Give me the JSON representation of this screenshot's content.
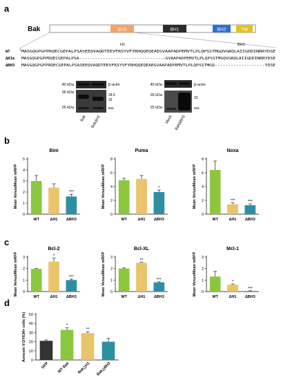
{
  "panel_labels": {
    "a": "a",
    "b": "b",
    "c": "c",
    "d": "d"
  },
  "colors": {
    "wt": "#8cc63f",
    "dh1": "#e8c46a",
    "dbh3": "#2e8fa3",
    "gfp": "#333333",
    "bh3_domain": "#f4a366",
    "bh1_domain": "#2b2b2b",
    "bh2_domain": "#2f6fce",
    "tm_domain": "#e3c21a",
    "gel_bg": "#2a2a2a"
  },
  "domain_map": {
    "protein": "Bak",
    "domains": [
      {
        "name": "BH3",
        "color_key": "bh3_domain"
      },
      {
        "name": "BH1",
        "color_key": "bh1_domain"
      },
      {
        "name": "BH2",
        "color_key": "bh2_domain"
      },
      {
        "name": "TM",
        "color_key": "tm_domain"
      }
    ]
  },
  "alignment": {
    "region_labels": {
      "h1": "H1",
      "bh3": "BH3"
    },
    "start_index": "1",
    "rows": [
      {
        "name": "WT",
        "seq": "MASGQGPGPPRQECGEPALPSASEEQVAQDTEEVFRSYVFYRHQQEQEAEGVAAPADPEMVTLPLQPSSTMGQVGRQLAIIGDDINRRYDSE"
      },
      {
        "name": "ΔH1α",
        "seq": "MASGQGPGPPRQECGEPALPSA---------------------------------GVAAPADPEMVTLPLQPSSTMGQVGRQLAIIGDDINRRYDSE"
      },
      {
        "name": "ΔBH3",
        "seq": "MASGQGPGPPRQECGEPALPSASEEQVAQDTEEVFRSYVFYRHQQEQEAEGVAAPADPEMVTLPLQPSSTMGQ-------------------YDSE"
      }
    ]
  },
  "blots": {
    "left": {
      "mw": [
        "40 kDa",
        "35 kDa",
        "25 kDa"
      ],
      "right_labels": [
        "β-actin",
        "34.5",
        "32",
        "Bak"
      ],
      "lanes": [
        "Bak",
        "BakΔH1"
      ]
    },
    "right": {
      "mw": [
        "40 kDa",
        "35 kDa",
        "25 kDa"
      ],
      "right_labels": [
        "β-actin",
        "33",
        "Bak"
      ],
      "lanes": [
        "Mock",
        "BakΔBH3"
      ]
    }
  },
  "chart_data": [
    {
      "type": "bar",
      "panel": "b",
      "title": "Bim",
      "ylabel": "Mean Venus/Mean mRFP",
      "categories": [
        "WT",
        "ΔH1",
        "ΔBH3"
      ],
      "values": [
        3.0,
        2.4,
        1.6
      ],
      "errors": [
        0.5,
        0.35,
        0.2
      ],
      "significance": [
        "",
        "",
        "***"
      ],
      "ylim": [
        0,
        5
      ],
      "yticks": [
        "0",
        "1",
        "2",
        "3",
        "4",
        "5"
      ]
    },
    {
      "type": "bar",
      "panel": "b",
      "title": "Puma",
      "ylabel": "Mean Venus/Mean mRFP",
      "categories": [
        "WT",
        "ΔH1",
        "ΔBH3"
      ],
      "values": [
        4.9,
        5.1,
        3.2
      ],
      "errors": [
        0.3,
        0.5,
        0.3
      ],
      "significance": [
        "",
        "",
        "*"
      ],
      "ylim": [
        0,
        8
      ],
      "yticks": [
        "0",
        "2",
        "4",
        "6",
        "8"
      ]
    },
    {
      "type": "bar",
      "panel": "b",
      "title": "Noxa",
      "ylabel": "Mean Venus/Mean mRFP",
      "categories": [
        "WT",
        "ΔH1",
        "ΔBH3"
      ],
      "values": [
        6.4,
        1.45,
        1.3
      ],
      "errors": [
        1.3,
        0.2,
        0.2
      ],
      "significance": [
        "",
        "***",
        "***"
      ],
      "ylim": [
        0,
        8
      ],
      "yticks": [
        "0",
        "2",
        "4",
        "6",
        "8"
      ]
    },
    {
      "type": "bar",
      "panel": "c",
      "title": "Bcl-2",
      "ylabel": "Mean Venus/Mean mRFP",
      "categories": [
        "WT",
        "ΔH1",
        "ΔBH3"
      ],
      "values": [
        1.97,
        2.6,
        1.0
      ],
      "errors": [
        0.03,
        0.3,
        0.08
      ],
      "significance": [
        "",
        "*",
        "***"
      ],
      "ylim": [
        0,
        3
      ],
      "yticks": [
        "0",
        "1",
        "2",
        "3"
      ]
    },
    {
      "type": "bar",
      "panel": "c",
      "title": "Bcl-XL",
      "ylabel": "Mean Venus/Mean mRFP",
      "categories": [
        "WT",
        "ΔH1",
        "ΔBH3"
      ],
      "values": [
        2.0,
        2.5,
        0.8
      ],
      "errors": [
        0.05,
        0.05,
        0.05
      ],
      "significance": [
        "",
        "**",
        "***"
      ],
      "ylim": [
        0,
        3
      ],
      "yticks": [
        "0",
        "1",
        "2",
        "3"
      ]
    },
    {
      "type": "bar",
      "panel": "c",
      "title": "Mcl-1",
      "ylabel": "Mean Venus/Mean mRFP",
      "categories": [
        "WT",
        "ΔH1",
        "ΔBH3"
      ],
      "values": [
        1.3,
        0.6,
        0.05
      ],
      "errors": [
        0.45,
        0.06,
        0.02
      ],
      "significance": [
        "",
        "*",
        "***"
      ],
      "ylim": [
        0,
        3
      ],
      "yticks": [
        "0",
        "1",
        "2",
        "3"
      ]
    },
    {
      "type": "bar",
      "panel": "d",
      "title": "",
      "ylabel": "Annexin V-DY634+ cells (%)",
      "categories": [
        "GFP",
        "WT Bak",
        "Bak△H1",
        "Bak△BH3"
      ],
      "values": [
        21,
        33,
        29.5,
        20
      ],
      "errors": [
        1,
        2.5,
        1.5,
        4
      ],
      "significance": [
        "",
        "*",
        "**",
        ""
      ],
      "ylim": [
        0,
        50
      ],
      "yticks": [
        "0",
        "10",
        "20",
        "30",
        "40",
        "50"
      ]
    }
  ]
}
